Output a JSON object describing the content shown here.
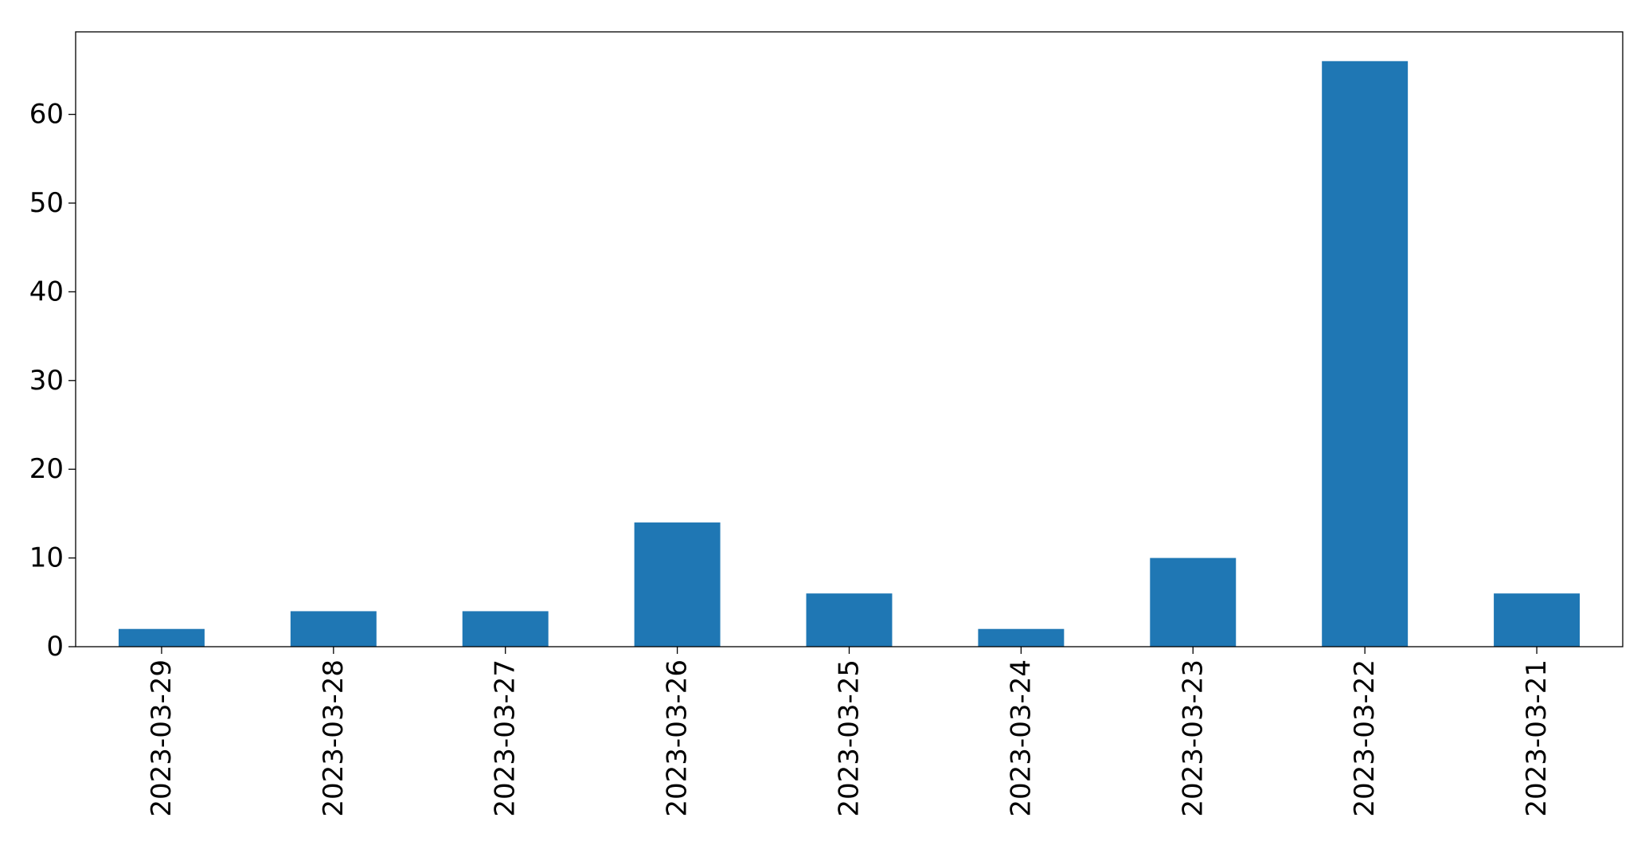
{
  "chart_data": {
    "type": "bar",
    "categories": [
      "2023-03-29",
      "2023-03-28",
      "2023-03-27",
      "2023-03-26",
      "2023-03-25",
      "2023-03-24",
      "2023-03-23",
      "2023-03-22",
      "2023-03-21"
    ],
    "values": [
      2,
      4,
      4,
      14,
      6,
      2,
      10,
      66,
      6
    ],
    "title": "",
    "xlabel": "",
    "ylabel": "",
    "ylim": [
      0,
      69.3
    ],
    "yticks": [
      0,
      10,
      20,
      30,
      40,
      50,
      60
    ],
    "grid": false,
    "bar_color": "#1f77b4",
    "x_tick_rotation": "vertical"
  }
}
